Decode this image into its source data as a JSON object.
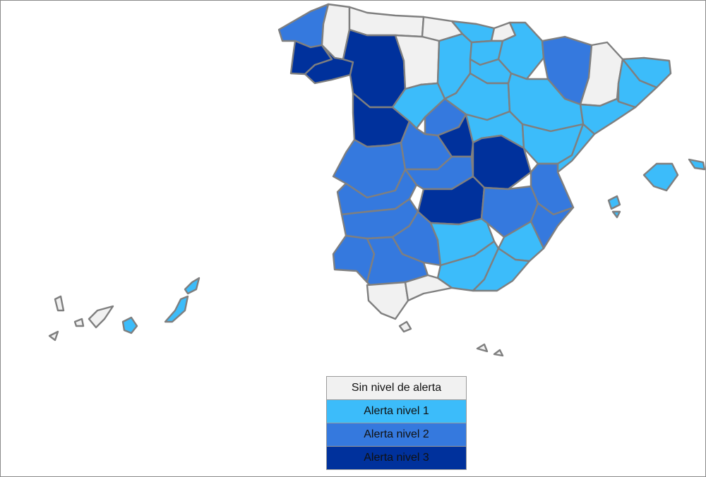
{
  "colors": {
    "none": "#f1f1f1",
    "level1": "#3cbcfa",
    "level2": "#3579de",
    "level3": "#00319c",
    "border": "#7f7f7f"
  },
  "legend": {
    "items": [
      {
        "label": "Sin nivel de alerta",
        "level": "none"
      },
      {
        "label": "Alerta nivel 1",
        "level": "level1"
      },
      {
        "label": "Alerta nivel 2",
        "level": "level2"
      },
      {
        "label": "Alerta nivel 3",
        "level": "level3"
      }
    ]
  },
  "regions": [
    {
      "id": "a-coruna",
      "level": "level2"
    },
    {
      "id": "lugo",
      "level": "none"
    },
    {
      "id": "asturias",
      "level": "none"
    },
    {
      "id": "cantabria",
      "level": "none"
    },
    {
      "id": "pontevedra",
      "level": "level3"
    },
    {
      "id": "ourense",
      "level": "level3"
    },
    {
      "id": "leon",
      "level": "level3"
    },
    {
      "id": "palencia",
      "level": "none"
    },
    {
      "id": "burgos",
      "level": "level1"
    },
    {
      "id": "bizkaia",
      "level": "level1"
    },
    {
      "id": "gipuzkoa",
      "level": "none"
    },
    {
      "id": "alava",
      "level": "level1"
    },
    {
      "id": "navarra",
      "level": "level1"
    },
    {
      "id": "la-rioja",
      "level": "level1"
    },
    {
      "id": "huesca",
      "level": "level2"
    },
    {
      "id": "lleida",
      "level": "none"
    },
    {
      "id": "girona",
      "level": "level1"
    },
    {
      "id": "barcelona",
      "level": "level1"
    },
    {
      "id": "tarragona",
      "level": "level1"
    },
    {
      "id": "zamora",
      "level": "level3"
    },
    {
      "id": "valladolid",
      "level": "level1"
    },
    {
      "id": "soria",
      "level": "level1"
    },
    {
      "id": "zaragoza",
      "level": "level1"
    },
    {
      "id": "salamanca",
      "level": "level2"
    },
    {
      "id": "segovia",
      "level": "level2"
    },
    {
      "id": "avila",
      "level": "level2"
    },
    {
      "id": "madrid",
      "level": "level3"
    },
    {
      "id": "guadalajara",
      "level": "level1"
    },
    {
      "id": "teruel",
      "level": "level1"
    },
    {
      "id": "castellon",
      "level": "level1"
    },
    {
      "id": "caceres",
      "level": "level2"
    },
    {
      "id": "toledo",
      "level": "level2"
    },
    {
      "id": "cuenca",
      "level": "level3"
    },
    {
      "id": "valencia",
      "level": "level2"
    },
    {
      "id": "badajoz",
      "level": "level2"
    },
    {
      "id": "ciudad-real",
      "level": "level3"
    },
    {
      "id": "albacete",
      "level": "level2"
    },
    {
      "id": "alicante",
      "level": "level2"
    },
    {
      "id": "huelva",
      "level": "level2"
    },
    {
      "id": "sevilla",
      "level": "level2"
    },
    {
      "id": "cordoba",
      "level": "level2"
    },
    {
      "id": "jaen",
      "level": "level1"
    },
    {
      "id": "granada",
      "level": "level1"
    },
    {
      "id": "murcia",
      "level": "level1"
    },
    {
      "id": "almeria",
      "level": "level1"
    },
    {
      "id": "cadiz",
      "level": "none"
    },
    {
      "id": "malaga",
      "level": "none"
    },
    {
      "id": "mallorca",
      "level": "level1"
    },
    {
      "id": "menorca",
      "level": "level1"
    },
    {
      "id": "ibiza",
      "level": "level1"
    },
    {
      "id": "formentera",
      "level": "level1"
    },
    {
      "id": "lanzarote",
      "level": "level1"
    },
    {
      "id": "fuerteventura",
      "level": "level1"
    },
    {
      "id": "gran-canaria",
      "level": "level1"
    },
    {
      "id": "tenerife",
      "level": "none"
    },
    {
      "id": "la-palma",
      "level": "none"
    },
    {
      "id": "la-gomera",
      "level": "none"
    },
    {
      "id": "el-hierro",
      "level": "none"
    },
    {
      "id": "ceuta",
      "level": "none"
    },
    {
      "id": "melilla",
      "level": "none"
    },
    {
      "id": "alboran",
      "level": "none"
    }
  ]
}
